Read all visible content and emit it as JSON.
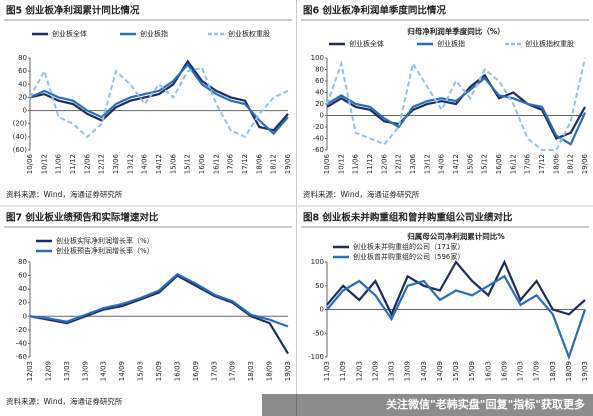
{
  "chart_data": [
    {
      "type": "line",
      "title": "图5 创业板净利润累计同比情况",
      "source": "资料来源：Wind，海通证券研究所",
      "legend": "top",
      "categories": [
        "10/06",
        "10/12",
        "11/06",
        "11/12",
        "12/06",
        "12/12",
        "13/06",
        "13/12",
        "14/06",
        "14/12",
        "15/06",
        "15/12",
        "16/06",
        "16/12",
        "17/06",
        "17/12",
        "18/06",
        "18/12",
        "19/06"
      ],
      "series": [
        {
          "name": "创业板全体",
          "color": "#1f2d5c",
          "dashed": false,
          "values": [
            20,
            25,
            15,
            10,
            -5,
            -15,
            5,
            15,
            20,
            25,
            40,
            75,
            45,
            30,
            20,
            15,
            -25,
            -30,
            -5
          ]
        },
        {
          "name": "创业板指",
          "color": "#2a6ebb",
          "dashed": false,
          "values": [
            20,
            30,
            20,
            15,
            0,
            -10,
            10,
            20,
            25,
            30,
            45,
            70,
            40,
            25,
            15,
            10,
            -15,
            -35,
            -10
          ]
        },
        {
          "name": "创业板权重股",
          "color": "#8fc3ea",
          "dashed": true,
          "values": [
            20,
            60,
            -10,
            -20,
            -40,
            -20,
            60,
            40,
            10,
            40,
            20,
            60,
            65,
            10,
            -30,
            -40,
            -5,
            20,
            30
          ]
        }
      ],
      "ylim": [
        -60,
        80
      ],
      "yticks": [
        80,
        60,
        40,
        20,
        0,
        {
          "value": -20,
          "label": "(20)"
        },
        {
          "value": -40,
          "label": "(40)"
        },
        {
          "value": -60,
          "label": "(60)"
        }
      ]
    },
    {
      "type": "line",
      "title": "图6 创业板净利润单季度同比情况",
      "subtitle": "归母净利润单季度同比（%）",
      "source": "资料来源：Wind，海通证券研究所",
      "legend": "top",
      "categories": [
        "10/06",
        "10/12",
        "11/06",
        "11/12",
        "12/06",
        "12/12",
        "13/06",
        "13/12",
        "14/06",
        "14/12",
        "15/06",
        "15/12",
        "16/06",
        "16/12",
        "17/06",
        "17/12",
        "18/06",
        "18/12",
        "19/06"
      ],
      "series": [
        {
          "name": "创业板全体",
          "color": "#1f2d5c",
          "dashed": false,
          "values": [
            15,
            30,
            15,
            10,
            -10,
            -15,
            10,
            20,
            25,
            20,
            50,
            70,
            30,
            40,
            20,
            10,
            -40,
            -30,
            15
          ]
        },
        {
          "name": "创业板指",
          "color": "#2a6ebb",
          "dashed": false,
          "values": [
            20,
            35,
            20,
            15,
            -5,
            -20,
            15,
            25,
            30,
            25,
            45,
            65,
            35,
            30,
            20,
            15,
            -35,
            -50,
            5
          ]
        },
        {
          "name": "创业板指权重股",
          "color": "#8fc3ea",
          "dashed": true,
          "values": [
            20,
            90,
            -30,
            -40,
            -50,
            -20,
            90,
            50,
            10,
            60,
            30,
            80,
            60,
            20,
            -40,
            -60,
            -60,
            -10,
            100
          ]
        }
      ],
      "ylim": [
        -60,
        100
      ],
      "yticks": [
        100,
        80,
        60,
        40,
        20,
        0,
        -20,
        -40,
        -60
      ]
    },
    {
      "type": "line",
      "title": "图7 创业板业绩预告和实际增速对比",
      "source": "资料来源：Wind，海通证券研究所",
      "legend": "upper left",
      "categories": [
        "12/03",
        "12/09",
        "13/03",
        "13/09",
        "14/03",
        "14/09",
        "15/03",
        "15/09",
        "16/03",
        "16/09",
        "17/03",
        "17/09",
        "18/03",
        "18/09",
        "19/03"
      ],
      "series": [
        {
          "name": "创业板实际净利润增长率（%）",
          "color": "#1f2d5c",
          "dashed": false,
          "values": [
            0,
            -5,
            -10,
            0,
            10,
            15,
            25,
            35,
            60,
            45,
            30,
            20,
            0,
            -10,
            -55
          ]
        },
        {
          "name": "创业板预告净利润增长率（%）",
          "color": "#2a6ebb",
          "dashed": false,
          "values": [
            0,
            -3,
            -8,
            2,
            12,
            18,
            27,
            38,
            62,
            48,
            32,
            22,
            2,
            -5,
            -15
          ]
        }
      ],
      "ylim": [
        -60,
        80
      ],
      "yticks": [
        80,
        60,
        40,
        20,
        0,
        -20,
        -40,
        -60
      ]
    },
    {
      "type": "line",
      "title": "图8 创业板未并购重组和曾并购重组公司业绩对比",
      "subtitle": "归属母公司净利润累计同比%",
      "source": "",
      "legend": "upper left",
      "categories": [
        "11/03",
        "11/09",
        "12/03",
        "12/09",
        "13/03",
        "13/09",
        "14/03",
        "14/09",
        "15/03",
        "15/09",
        "16/03",
        "16/09",
        "17/03",
        "17/09",
        "18/03",
        "18/09",
        "19/03"
      ],
      "series": [
        {
          "name": "创业板未并购重组的公司（171家）",
          "color": "#1f2d5c",
          "dashed": false,
          "values": [
            10,
            50,
            20,
            60,
            -10,
            70,
            50,
            40,
            100,
            60,
            30,
            100,
            20,
            60,
            0,
            -10,
            20
          ]
        },
        {
          "name": "创业板曾并购重组的公司（596家）",
          "color": "#2a6ebb",
          "dashed": false,
          "values": [
            0,
            40,
            60,
            30,
            -20,
            50,
            60,
            20,
            40,
            30,
            50,
            70,
            10,
            30,
            -10,
            -100,
            0
          ]
        }
      ],
      "ylim": [
        -100,
        100
      ],
      "yticks": [
        100,
        50,
        0,
        -50,
        -100
      ]
    }
  ],
  "watermark": "关注微信\"老韩实盘\"回复\"指标\"获取更多"
}
